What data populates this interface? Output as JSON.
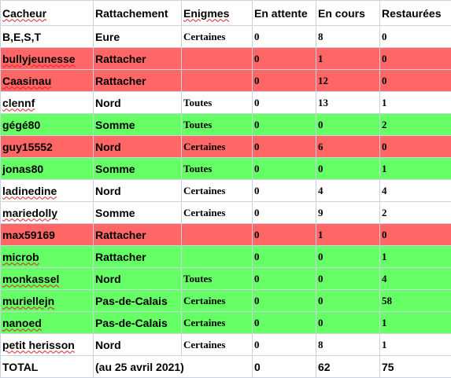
{
  "headers": [
    "Cacheur",
    "Rattachement",
    "Enigmes",
    "En attente",
    "En cours",
    "Restaurées"
  ],
  "colors": {
    "white": "#ffffff",
    "red": "#ff6666",
    "green": "#66ff66",
    "grid": "#c9d3e3"
  },
  "rows": [
    {
      "cacheur": "B,E,S,T",
      "rattachement": "Eure",
      "enigmes": "Certaines",
      "attente": "0",
      "cours": "8",
      "restaurees": "0",
      "color": "white",
      "spell": false
    },
    {
      "cacheur": "bullyjeunesse",
      "rattachement": "Rattacher",
      "enigmes": "",
      "attente": "0",
      "cours": "1",
      "restaurees": "0",
      "color": "red",
      "spell": true
    },
    {
      "cacheur": "Caasinau",
      "rattachement": "Rattacher",
      "enigmes": "",
      "attente": "0",
      "cours": "12",
      "restaurees": "0",
      "color": "red",
      "spell": true
    },
    {
      "cacheur": "clennf",
      "rattachement": "Nord",
      "enigmes": "Toutes",
      "attente": "0",
      "cours": "13",
      "restaurees": "1",
      "color": "white",
      "spell": true
    },
    {
      "cacheur": "gégé80",
      "rattachement": "Somme",
      "enigmes": "Toutes",
      "attente": "0",
      "cours": "0",
      "restaurees": "2",
      "color": "green",
      "spell": false
    },
    {
      "cacheur": "guy15552",
      "rattachement": "Nord",
      "enigmes": "Certaines",
      "attente": "0",
      "cours": "6",
      "restaurees": "0",
      "color": "red",
      "spell": false
    },
    {
      "cacheur": "jonas80",
      "rattachement": "Somme",
      "enigmes": "Toutes",
      "attente": "0",
      "cours": "0",
      "restaurees": "1",
      "color": "green",
      "spell": false
    },
    {
      "cacheur": "ladinedine",
      "rattachement": "Nord",
      "enigmes": "Certaines",
      "attente": "0",
      "cours": "4",
      "restaurees": "4",
      "color": "white",
      "spell": true
    },
    {
      "cacheur": "mariedolly",
      "rattachement": "Somme",
      "enigmes": "Certaines",
      "attente": "0",
      "cours": "9",
      "restaurees": "2",
      "color": "white",
      "spell": true
    },
    {
      "cacheur": "max59169",
      "rattachement": "Rattacher",
      "enigmes": "",
      "attente": "0",
      "cours": "1",
      "restaurees": "0",
      "color": "red",
      "spell": false
    },
    {
      "cacheur": "microb",
      "rattachement": "Rattacher",
      "enigmes": "",
      "attente": "0",
      "cours": "0",
      "restaurees": "1",
      "color": "green",
      "spell": true
    },
    {
      "cacheur": "monkassel",
      "rattachement": "Nord",
      "enigmes": "Toutes",
      "attente": "0",
      "cours": "0",
      "restaurees": "4",
      "color": "green",
      "spell": true
    },
    {
      "cacheur": "muriellejn",
      "rattachement": "Pas-de-Calais",
      "enigmes": "Certaines",
      "attente": "0",
      "cours": "0",
      "restaurees": "58",
      "color": "green",
      "spell": true
    },
    {
      "cacheur": "nanoed",
      "rattachement": "Pas-de-Calais",
      "enigmes": "Certaines",
      "attente": "0",
      "cours": "0",
      "restaurees": "1",
      "color": "green",
      "spell": true
    },
    {
      "cacheur": "petit herisson",
      "rattachement": "Nord",
      "enigmes": "Certaines",
      "attente": "0",
      "cours": "8",
      "restaurees": "1",
      "color": "white",
      "spell": true
    }
  ],
  "total": {
    "label": "TOTAL",
    "date": "(au 25 avril 2021)",
    "attente": "0",
    "cours": "62",
    "restaurees": "75"
  }
}
